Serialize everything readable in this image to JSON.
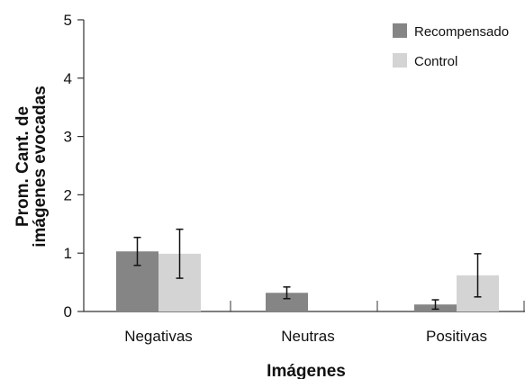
{
  "chart_data": {
    "type": "bar",
    "title": "",
    "xlabel": "Imágenes",
    "ylabel_lines": [
      "Prom. Cant. de",
      "imágenes evocadas"
    ],
    "ylim": [
      0,
      5
    ],
    "yticks": [
      "0",
      "1",
      "2",
      "3",
      "4",
      "5"
    ],
    "categories": [
      "Negativas",
      "Neutras",
      "Positivas"
    ],
    "series": [
      {
        "name": "Recompensado",
        "color": "#858585",
        "values": [
          1.03,
          0.32,
          0.12
        ],
        "errors": [
          0.24,
          0.1,
          0.08
        ]
      },
      {
        "name": "Control",
        "color": "#d4d4d4",
        "values": [
          0.99,
          0.0,
          0.62
        ],
        "errors": [
          0.42,
          0.0,
          0.37
        ]
      }
    ],
    "legend_position": "top-right",
    "grid": false
  }
}
